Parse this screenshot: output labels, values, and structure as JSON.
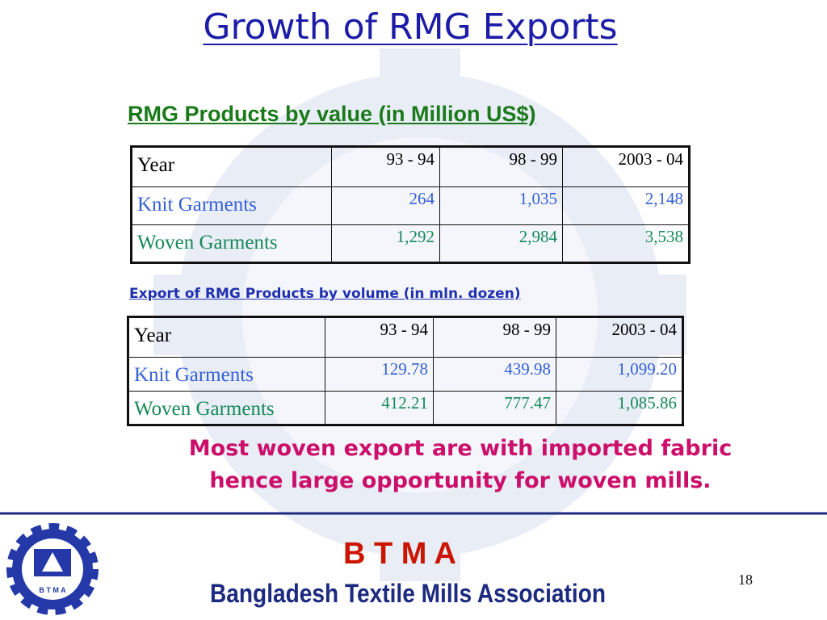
{
  "title": "Growth of RMG Exports",
  "tables": [
    {
      "caption": "RMG Products by value (in Million US$)",
      "header": [
        "Year",
        "93 - 94",
        "98 - 99",
        "2003 - 04"
      ],
      "rows": [
        [
          "Knit Garments",
          "264",
          "1,035",
          "2,148"
        ],
        [
          "Woven Garments",
          "1,292",
          "2,984",
          "3,538"
        ]
      ]
    },
    {
      "caption": "Export of RMG Products by volume (in mln. dozen)",
      "header": [
        "Year",
        "93 - 94",
        "98 - 99",
        "2003 - 04"
      ],
      "rows": [
        [
          "Knit Garments",
          "129.78",
          "439.98",
          "1,099.20"
        ],
        [
          "Woven Garments",
          "412.21",
          "777.47",
          "1,085.86"
        ]
      ]
    }
  ],
  "note": [
    "Most woven export are with imported fabric",
    "hence large opportunity for woven mills."
  ],
  "footer": {
    "logo_text": "B T M A",
    "acronym": "B T M A",
    "organization": "Bangladesh Textile Mills Association",
    "page": "18"
  }
}
